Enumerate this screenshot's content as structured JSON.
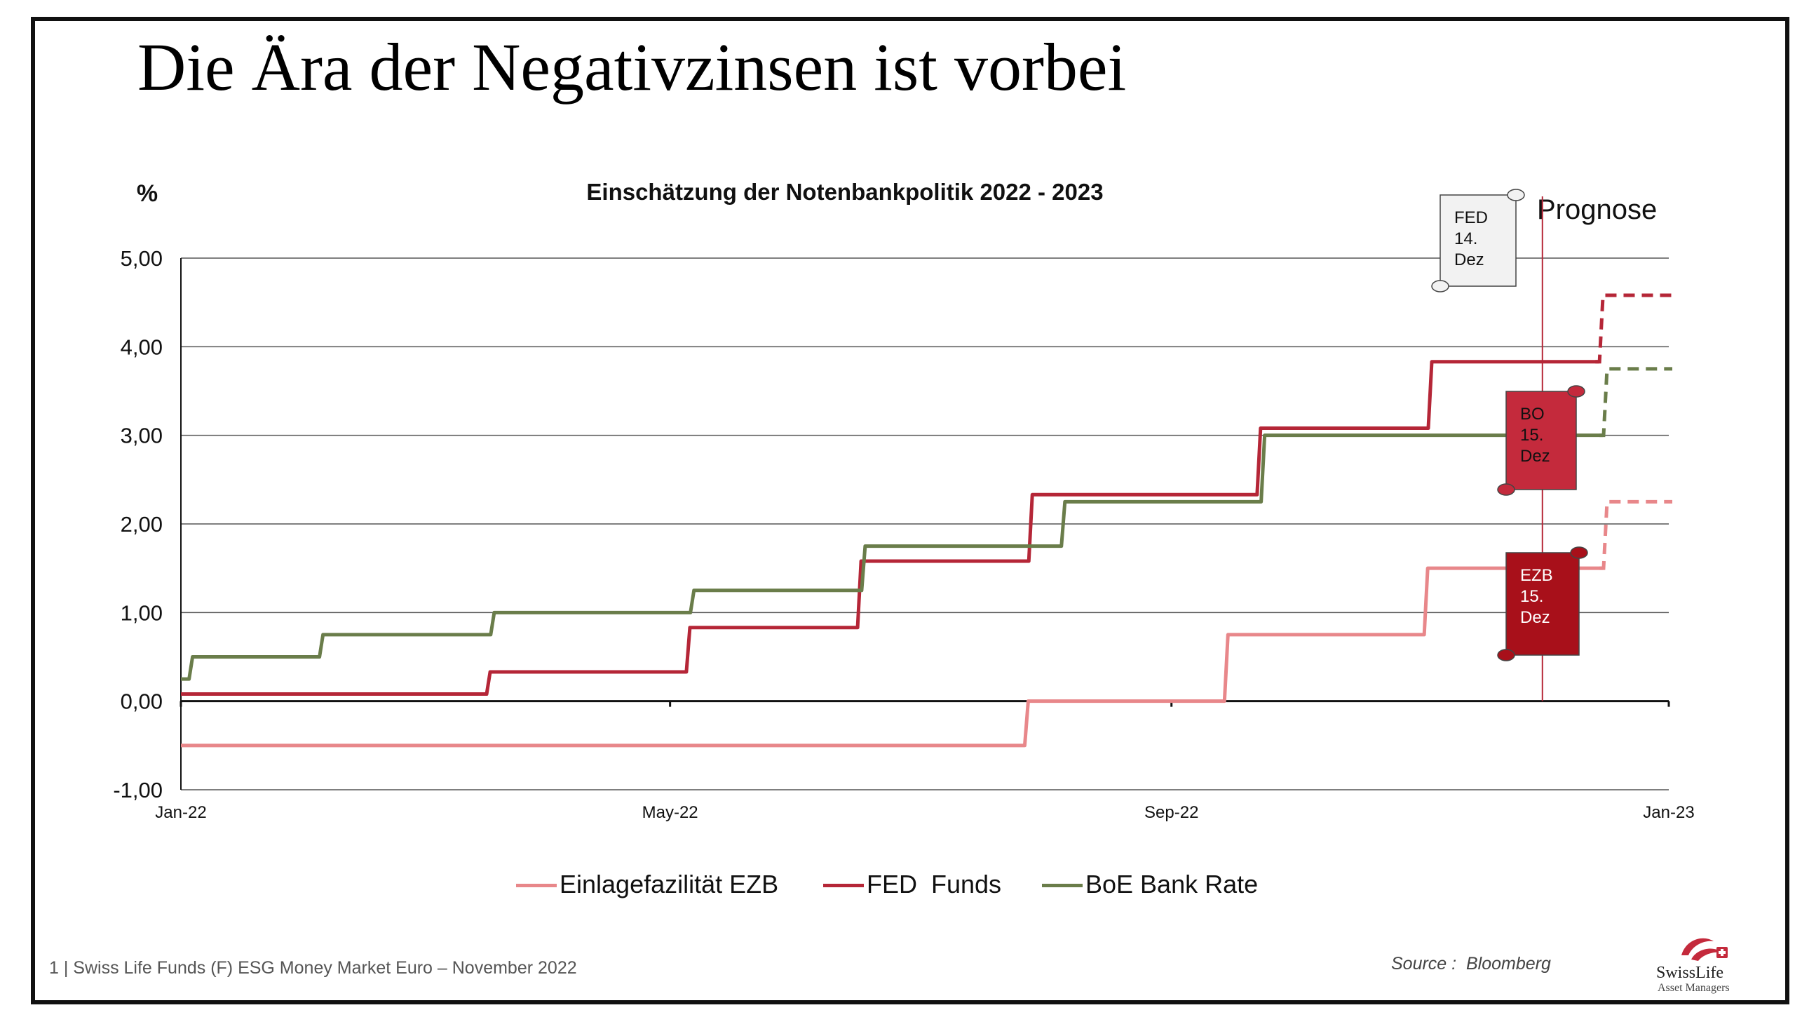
{
  "slide": {
    "title": "Die Ära der Negativzinsen ist vorbei",
    "footer": "1 | Swiss Life Funds (F) ESG Money Market Euro – November 2022",
    "source": "Source :  Bloomberg",
    "logo": {
      "line1": "SwissLife",
      "line2": "Asset Managers",
      "icon": "swisslife-logo-icon"
    }
  },
  "chart_data": {
    "type": "line",
    "title": "Einschätzung der Notenbankpolitik 2022 - 2023",
    "ylabel": "%",
    "xlabel": "",
    "ylim": [
      -1,
      5
    ],
    "yticks": [
      "5,00",
      "4,00",
      "3,00",
      "2,00",
      "1,00",
      "0,00",
      "-1,00"
    ],
    "xticks": [
      "Jan-22",
      "May-22",
      "Sep-22",
      "Jan-23"
    ],
    "x_range": [
      "2022-01-01",
      "2023-01-01"
    ],
    "grid": true,
    "legend_position": "bottom",
    "forecast_marker": {
      "date": "2022-12-01",
      "label": "Prognose"
    },
    "series": [
      {
        "name": "Einlagefazilität EZB",
        "color": "#E8878A",
        "step": true,
        "points": [
          [
            "2022-01-01",
            -0.5
          ],
          [
            "2022-07-27",
            0.0
          ],
          [
            "2022-09-14",
            0.75
          ],
          [
            "2022-11-02",
            1.5
          ],
          [
            "2022-12-15",
            1.5
          ]
        ],
        "forecast": [
          [
            "2022-12-15",
            1.5
          ],
          [
            "2022-12-16",
            2.25
          ],
          [
            "2023-01-01",
            2.25
          ]
        ]
      },
      {
        "name": "FED  Funds",
        "color": "#B52637",
        "step": true,
        "points": [
          [
            "2022-01-01",
            0.08
          ],
          [
            "2022-03-17",
            0.33
          ],
          [
            "2022-05-05",
            0.83
          ],
          [
            "2022-06-16",
            1.58
          ],
          [
            "2022-07-28",
            2.33
          ],
          [
            "2022-09-22",
            3.08
          ],
          [
            "2022-11-03",
            3.83
          ],
          [
            "2022-12-14",
            3.83
          ]
        ],
        "forecast": [
          [
            "2022-12-14",
            3.83
          ],
          [
            "2022-12-15",
            4.58
          ],
          [
            "2023-01-01",
            4.58
          ]
        ]
      },
      {
        "name": "BoE Bank Rate",
        "color": "#6A7D4A",
        "step": true,
        "points": [
          [
            "2022-01-01",
            0.25
          ],
          [
            "2022-01-03",
            0.5
          ],
          [
            "2022-02-04",
            0.75
          ],
          [
            "2022-03-18",
            1.0
          ],
          [
            "2022-05-06",
            1.25
          ],
          [
            "2022-06-17",
            1.75
          ],
          [
            "2022-08-05",
            2.25
          ],
          [
            "2022-09-23",
            3.0
          ],
          [
            "2022-11-04",
            3.0
          ],
          [
            "2022-12-15",
            3.0
          ]
        ],
        "forecast": [
          [
            "2022-12-15",
            3.0
          ],
          [
            "2022-12-16",
            3.75
          ],
          [
            "2023-01-01",
            3.75
          ]
        ]
      }
    ],
    "annotations": [
      {
        "text": [
          "FED",
          "14.",
          "Dez"
        ],
        "fill": "#F2F2F2",
        "text_color": "#111111",
        "anchor_date": "2022-12-14",
        "anchor_value": 4.58
      },
      {
        "text": [
          "BO",
          "15.",
          "Dez"
        ],
        "fill": "#C42A3C",
        "text_color": "#111111",
        "anchor_date": "2022-12-15",
        "anchor_value": 3.75
      },
      {
        "text": [
          "EZB",
          "15.",
          "Dez"
        ],
        "fill": "#A8101A",
        "text_color": "#FFFFFF",
        "anchor_date": "2022-12-15",
        "anchor_value": 2.25
      }
    ]
  }
}
